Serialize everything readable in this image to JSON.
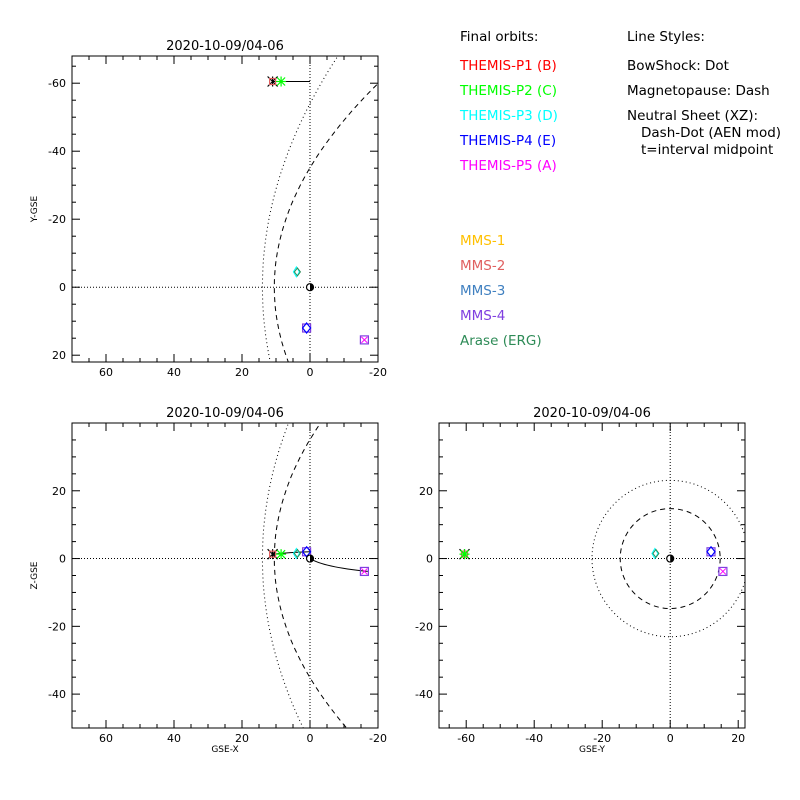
{
  "legend": {
    "orbits_header": "Final orbits:",
    "styles_header": "Line Styles:",
    "spacecraft": [
      {
        "label": "THEMIS-P1 (B)",
        "color": "#ff0000"
      },
      {
        "label": "THEMIS-P2 (C)",
        "color": "#00ff00"
      },
      {
        "label": "THEMIS-P3 (D)",
        "color": "#00ffff"
      },
      {
        "label": "THEMIS-P4 (E)",
        "color": "#0000ff"
      },
      {
        "label": "THEMIS-P5 (A)",
        "color": "#ff00ff"
      }
    ],
    "styles": [
      "BowShock: Dot",
      "Magnetopause: Dash",
      "Neutral Sheet (XZ):",
      "Dash-Dot (AEN mod)",
      "t=interval midpoint"
    ],
    "missions": [
      {
        "label": "MMS-1",
        "color": "#ffc000"
      },
      {
        "label": "MMS-2",
        "color": "#e06060"
      },
      {
        "label": "MMS-3",
        "color": "#4080c0"
      },
      {
        "label": "MMS-4",
        "color": "#8040e0"
      },
      {
        "label": "Arase (ERG)",
        "color": "#2e8b57"
      }
    ]
  },
  "chart_data": [
    {
      "type": "scatter",
      "title": "2020-10-09/04-06",
      "xlabel": "",
      "ylabel": "Y-GSE",
      "xlim": [
        70,
        -20
      ],
      "ylim": [
        22,
        -68
      ],
      "xticks": [
        60,
        40,
        20,
        0,
        -20
      ],
      "yticks": [
        -60,
        -40,
        -20,
        0,
        20
      ],
      "points": [
        {
          "name": "THEMIS-P1 (B)",
          "x": 11,
          "y": -60.5,
          "color": "#ff0000"
        },
        {
          "name": "THEMIS-P2 (C)",
          "x": 8.5,
          "y": -60.5,
          "color": "#00ff00"
        },
        {
          "name": "THEMIS-P3 (D)",
          "x": 4,
          "y": -4.5,
          "color": "#00ffff"
        },
        {
          "name": "THEMIS-P4 (E)",
          "x": 1,
          "y": 12,
          "color": "#0000ff"
        },
        {
          "name": "THEMIS-P5 (A)",
          "x": -16,
          "y": 15.5,
          "color": "#ff00ff"
        },
        {
          "name": "Arase (ERG)",
          "x": 4,
          "y": -4.5,
          "color": "#2e8b57"
        }
      ]
    },
    {
      "type": "scatter",
      "title": "2020-10-09/04-06",
      "xlabel": "GSE-X",
      "ylabel": "Z-GSE",
      "xlim": [
        70,
        -20
      ],
      "ylim": [
        -50,
        40
      ],
      "xticks": [
        60,
        40,
        20,
        0,
        -20
      ],
      "yticks": [
        20,
        0,
        -20,
        -40
      ],
      "points": [
        {
          "name": "THEMIS-P1 (B)",
          "x": 11,
          "y": 1.3,
          "color": "#ff0000"
        },
        {
          "name": "THEMIS-P2 (C)",
          "x": 8.5,
          "y": 1.3,
          "color": "#00ff00"
        },
        {
          "name": "THEMIS-P3 (D)",
          "x": 4,
          "y": 1.5,
          "color": "#00ffff"
        },
        {
          "name": "THEMIS-P4 (E)",
          "x": 1,
          "y": 2,
          "color": "#0000ff"
        },
        {
          "name": "THEMIS-P5 (A)",
          "x": -16,
          "y": -3.8,
          "color": "#ff00ff"
        },
        {
          "name": "Arase (ERG)",
          "x": 4,
          "y": 1.5,
          "color": "#2e8b57"
        }
      ]
    },
    {
      "type": "scatter",
      "title": "2020-10-09/04-06",
      "xlabel": "GSE-Y",
      "ylabel": "",
      "xlim": [
        -68,
        22
      ],
      "ylim": [
        -50,
        40
      ],
      "xticks": [
        -60,
        -40,
        -20,
        0,
        20
      ],
      "yticks": [
        20,
        0,
        -20,
        -40
      ],
      "points": [
        {
          "name": "THEMIS-P1 (B)",
          "x": -60.5,
          "y": 1.3,
          "color": "#ff0000"
        },
        {
          "name": "THEMIS-P2 (C)",
          "x": -60.5,
          "y": 1.3,
          "color": "#00ff00"
        },
        {
          "name": "THEMIS-P3 (D)",
          "x": -4.5,
          "y": 1.5,
          "color": "#00ffff"
        },
        {
          "name": "THEMIS-P4 (E)",
          "x": 12,
          "y": 2,
          "color": "#0000ff"
        },
        {
          "name": "THEMIS-P5 (A)",
          "x": 15.5,
          "y": -3.8,
          "color": "#ff00ff"
        },
        {
          "name": "Arase (ERG)",
          "x": -4.5,
          "y": 1.5,
          "color": "#2e8b57"
        }
      ]
    }
  ]
}
